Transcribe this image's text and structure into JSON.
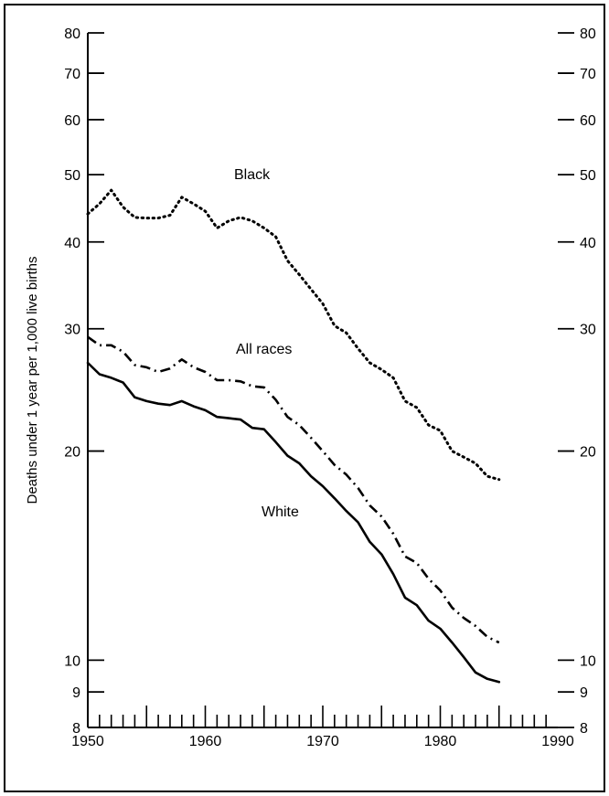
{
  "chart_data": {
    "type": "line",
    "title": "",
    "xlabel": "",
    "ylabel": "Deaths under 1 year per 1,000 live births",
    "xlim": [
      1950,
      1990
    ],
    "ylim": [
      8,
      80
    ],
    "yscale": "log",
    "grid": false,
    "x_ticks": [
      "1950",
      "1960",
      "1970",
      "1980",
      "1990"
    ],
    "y_ticks": [
      "8",
      "9",
      "10",
      "20",
      "30",
      "40",
      "50",
      "60",
      "70",
      "80"
    ],
    "series": [
      {
        "name": "Black",
        "style": "dotted",
        "x": [
          1950,
          1951,
          1952,
          1953,
          1954,
          1955,
          1956,
          1957,
          1958,
          1959,
          1960,
          1961,
          1962,
          1963,
          1964,
          1965,
          1966,
          1967,
          1968,
          1969,
          1970,
          1971,
          1972,
          1973,
          1974,
          1975,
          1976,
          1977,
          1978,
          1979,
          1980,
          1981,
          1982,
          1983,
          1984,
          1985
        ],
        "values": [
          43.9,
          45.4,
          47.5,
          44.9,
          43.4,
          43.3,
          43.3,
          43.7,
          46.4,
          45.4,
          44.3,
          41.9,
          42.9,
          43.4,
          42.9,
          41.9,
          40.7,
          37.6,
          35.9,
          34.2,
          32.6,
          30.3,
          29.6,
          28.1,
          26.8,
          26.2,
          25.5,
          23.6,
          23.1,
          21.8,
          21.4,
          20.0,
          19.6,
          19.2,
          18.4,
          18.2
        ]
      },
      {
        "name": "All races",
        "style": "dash-dot",
        "x": [
          1950,
          1951,
          1952,
          1953,
          1954,
          1955,
          1956,
          1957,
          1958,
          1959,
          1960,
          1961,
          1962,
          1963,
          1964,
          1965,
          1966,
          1967,
          1968,
          1969,
          1970,
          1971,
          1972,
          1973,
          1974,
          1975,
          1976,
          1977,
          1978,
          1979,
          1980,
          1981,
          1982,
          1983,
          1984,
          1985
        ],
        "values": [
          29.2,
          28.4,
          28.4,
          27.8,
          26.6,
          26.4,
          26.0,
          26.3,
          27.1,
          26.4,
          26.0,
          25.3,
          25.3,
          25.2,
          24.8,
          24.7,
          23.7,
          22.4,
          21.8,
          20.9,
          20.0,
          19.1,
          18.5,
          17.7,
          16.7,
          16.1,
          15.2,
          14.1,
          13.8,
          13.1,
          12.6,
          11.9,
          11.5,
          11.2,
          10.8,
          10.6
        ]
      },
      {
        "name": "White",
        "style": "solid",
        "x": [
          1950,
          1951,
          1952,
          1953,
          1954,
          1955,
          1956,
          1957,
          1958,
          1959,
          1960,
          1961,
          1962,
          1963,
          1964,
          1965,
          1966,
          1967,
          1968,
          1969,
          1970,
          1971,
          1972,
          1973,
          1974,
          1975,
          1976,
          1977,
          1978,
          1979,
          1980,
          1981,
          1982,
          1983,
          1984,
          1985
        ],
        "values": [
          26.8,
          25.8,
          25.5,
          25.1,
          23.9,
          23.6,
          23.4,
          23.3,
          23.6,
          23.2,
          22.9,
          22.4,
          22.3,
          22.2,
          21.6,
          21.5,
          20.6,
          19.7,
          19.2,
          18.4,
          17.8,
          17.1,
          16.4,
          15.8,
          14.8,
          14.2,
          13.3,
          12.3,
          12.0,
          11.4,
          11.1,
          10.6,
          10.1,
          9.6,
          9.4,
          9.3
        ]
      }
    ]
  }
}
